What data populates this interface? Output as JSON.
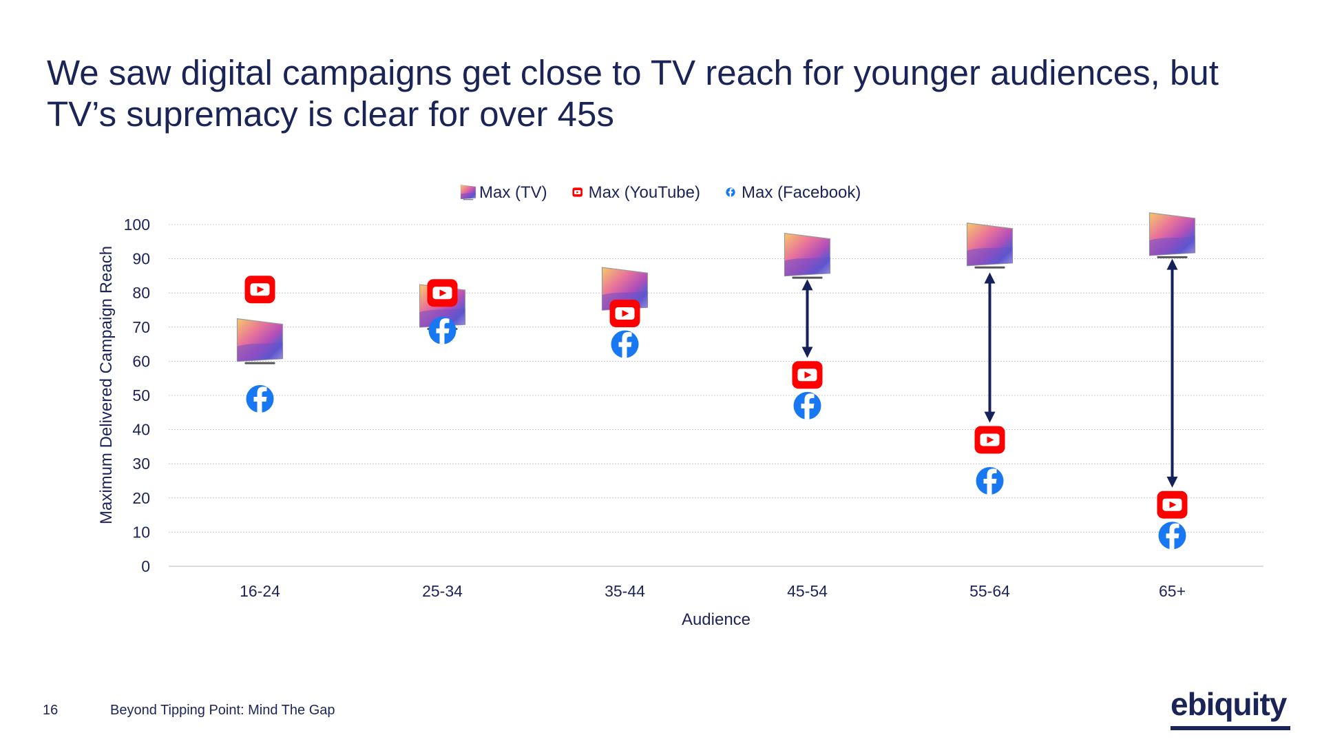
{
  "slide": {
    "title": "We saw digital campaigns get close to TV reach for younger audiences, but TV’s supremacy is clear for over 45s",
    "page_number": "16",
    "footer_text": "Beyond Tipping Point: Mind The Gap",
    "logo_text": "ebiquity"
  },
  "colors": {
    "title": "#1b2457",
    "axis_text": "#1b2457",
    "gridline": "#c8c8c8",
    "arrow": "#14215a",
    "youtube": "#ff0000",
    "facebook": "#1877f2"
  },
  "chart_data": {
    "type": "scatter",
    "categories": [
      "16-24",
      "25-34",
      "35-44",
      "45-54",
      "55-64",
      "65+"
    ],
    "xlabel": "Audience",
    "ylabel": "Maximum Delivered Campaign Reach",
    "ylim": [
      0,
      100
    ],
    "yticks": [
      0,
      10,
      20,
      30,
      40,
      50,
      60,
      70,
      80,
      90,
      100
    ],
    "grid": true,
    "legend_position": "top-center",
    "series": [
      {
        "name": "Max (TV)",
        "marker": "tv-icon",
        "values": [
          66,
          76,
          81,
          91,
          94,
          97
        ]
      },
      {
        "name": "Max (YouTube)",
        "marker": "youtube-icon",
        "values": [
          81,
          80,
          74,
          56,
          37,
          18
        ]
      },
      {
        "name": "Max (Facebook)",
        "marker": "facebook-icon",
        "values": [
          49,
          69,
          65,
          47,
          25,
          9
        ]
      }
    ],
    "gap_arrows": [
      {
        "category": "45-54",
        "from": 84,
        "to": 61
      },
      {
        "category": "55-64",
        "from": 86,
        "to": 42
      },
      {
        "category": "65+",
        "from": 90,
        "to": 23
      }
    ]
  }
}
